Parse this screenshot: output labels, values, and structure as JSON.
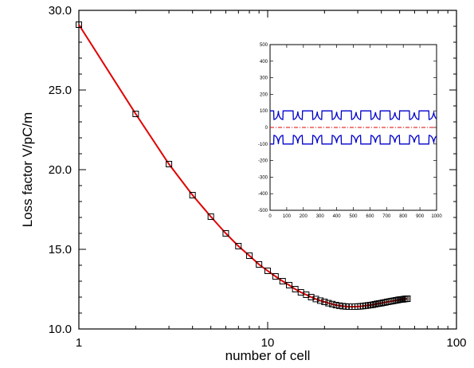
{
  "chart_data": [
    {
      "type": "scatter",
      "xscale": "log",
      "xlim": [
        1,
        100
      ],
      "ylim": [
        10.0,
        30.0
      ],
      "xlabel": "number of cell",
      "ylabel": "Loss factor  V/pC/m",
      "xticks": [
        1,
        10,
        100
      ],
      "xtick_labels": [
        "1",
        "10",
        "100"
      ],
      "yticks": [
        10,
        15,
        20,
        25,
        30
      ],
      "ytick_labels": [
        "10.0",
        "15.0",
        "20.0",
        "25.0",
        "30.0"
      ],
      "grid": false,
      "legend": "none",
      "series": [
        {
          "marker": "open-square",
          "line": "solid",
          "color": "#e00000",
          "marker_color": "#000000",
          "x": [
            1,
            2,
            3,
            4,
            5,
            6,
            7,
            8,
            9,
            10,
            11,
            12,
            13,
            14,
            15,
            16,
            17,
            18,
            19,
            20,
            21,
            22,
            23,
            24,
            25,
            26,
            27,
            28,
            29,
            30,
            31,
            32,
            33,
            34,
            35,
            36,
            37,
            38,
            39,
            40,
            41,
            42,
            43,
            44,
            45,
            46,
            47,
            48,
            49,
            50,
            51,
            52,
            53,
            54,
            55
          ],
          "y": [
            29.1,
            23.5,
            20.35,
            18.4,
            17.05,
            16.0,
            15.2,
            14.6,
            14.05,
            13.65,
            13.3,
            13.0,
            12.75,
            12.5,
            12.3,
            12.15,
            12.0,
            11.88,
            11.78,
            11.7,
            11.62,
            11.56,
            11.5,
            11.46,
            11.43,
            11.41,
            11.4,
            11.4,
            11.4,
            11.41,
            11.42,
            11.44,
            11.46,
            11.48,
            11.5,
            11.52,
            11.55,
            11.58,
            11.6,
            11.62,
            11.65,
            11.67,
            11.7,
            11.72,
            11.74,
            11.76,
            11.78,
            11.8,
            11.82,
            11.84,
            11.85,
            11.86,
            11.88,
            11.89,
            11.9
          ]
        }
      ]
    },
    {
      "type": "line",
      "inset": true,
      "xlim": [
        0,
        1000
      ],
      "ylim": [
        -500,
        500
      ],
      "xticks": [
        0,
        100,
        200,
        300,
        400,
        500,
        600,
        700,
        800,
        900,
        1000
      ],
      "xtick_labels": [
        "0",
        "100",
        "200",
        "300",
        "400",
        "500",
        "600",
        "700",
        "800",
        "900",
        "1000"
      ],
      "yticks": [
        -500,
        -400,
        -300,
        -200,
        -100,
        0,
        100,
        200,
        300,
        400,
        500
      ],
      "ytick_labels": [
        "-500",
        "-400",
        "-300",
        "-200",
        "-100",
        "0",
        "100",
        "200",
        "300",
        "400",
        "500"
      ],
      "grid": false,
      "legend": "none",
      "curves": [
        {
          "kind": "cell-profile",
          "color": "#0000cc",
          "sign": 1,
          "y_outer": 100,
          "y_inner": 48,
          "period": 116.6,
          "cells": 7,
          "x_start": 0,
          "x_end": 1000
        },
        {
          "kind": "cell-profile",
          "color": "#0000cc",
          "sign": -1,
          "y_outer": -100,
          "y_inner": -48,
          "period": 116.6,
          "cells": 7,
          "x_start": 0,
          "x_end": 1000
        },
        {
          "kind": "axis-line",
          "color": "#e00000",
          "style": "dash-dot",
          "y": 0,
          "x_start": 0,
          "x_end": 1000
        }
      ]
    }
  ]
}
